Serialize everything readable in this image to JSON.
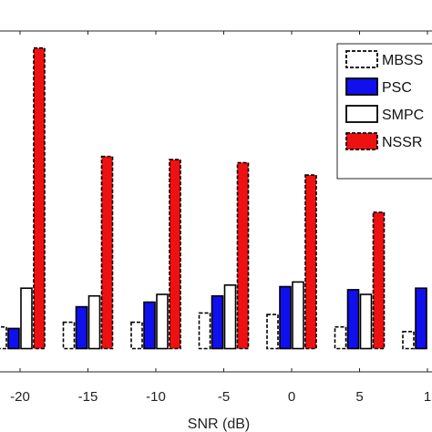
{
  "chart_data": {
    "type": "bar",
    "xlabel": "SNR (dB)",
    "categories": [
      "-20",
      "-15",
      "-10",
      "-5",
      "0",
      "5",
      "1"
    ],
    "series": [
      {
        "name": "MBSS",
        "values": [
          0.14,
          0.17,
          0.17,
          0.23,
          0.22,
          0.14,
          0.11
        ]
      },
      {
        "name": "PSC",
        "values": [
          0.13,
          0.27,
          0.3,
          0.34,
          0.4,
          0.38,
          0.39
        ]
      },
      {
        "name": "SMPC",
        "values": [
          0.39,
          0.34,
          0.35,
          0.41,
          0.43,
          0.35,
          null
        ]
      },
      {
        "name": "NSSR",
        "values": [
          1.94,
          1.24,
          1.22,
          1.2,
          1.12,
          0.88,
          null
        ]
      }
    ],
    "ylim": [
      -0.15,
      2.05
    ],
    "grid": false,
    "legend_position": "top-right",
    "colors": {
      "MBSS": "#ffffff",
      "PSC": "#1010ee",
      "SMPC": "#ffffff",
      "NSSR": "#ee1111"
    }
  }
}
